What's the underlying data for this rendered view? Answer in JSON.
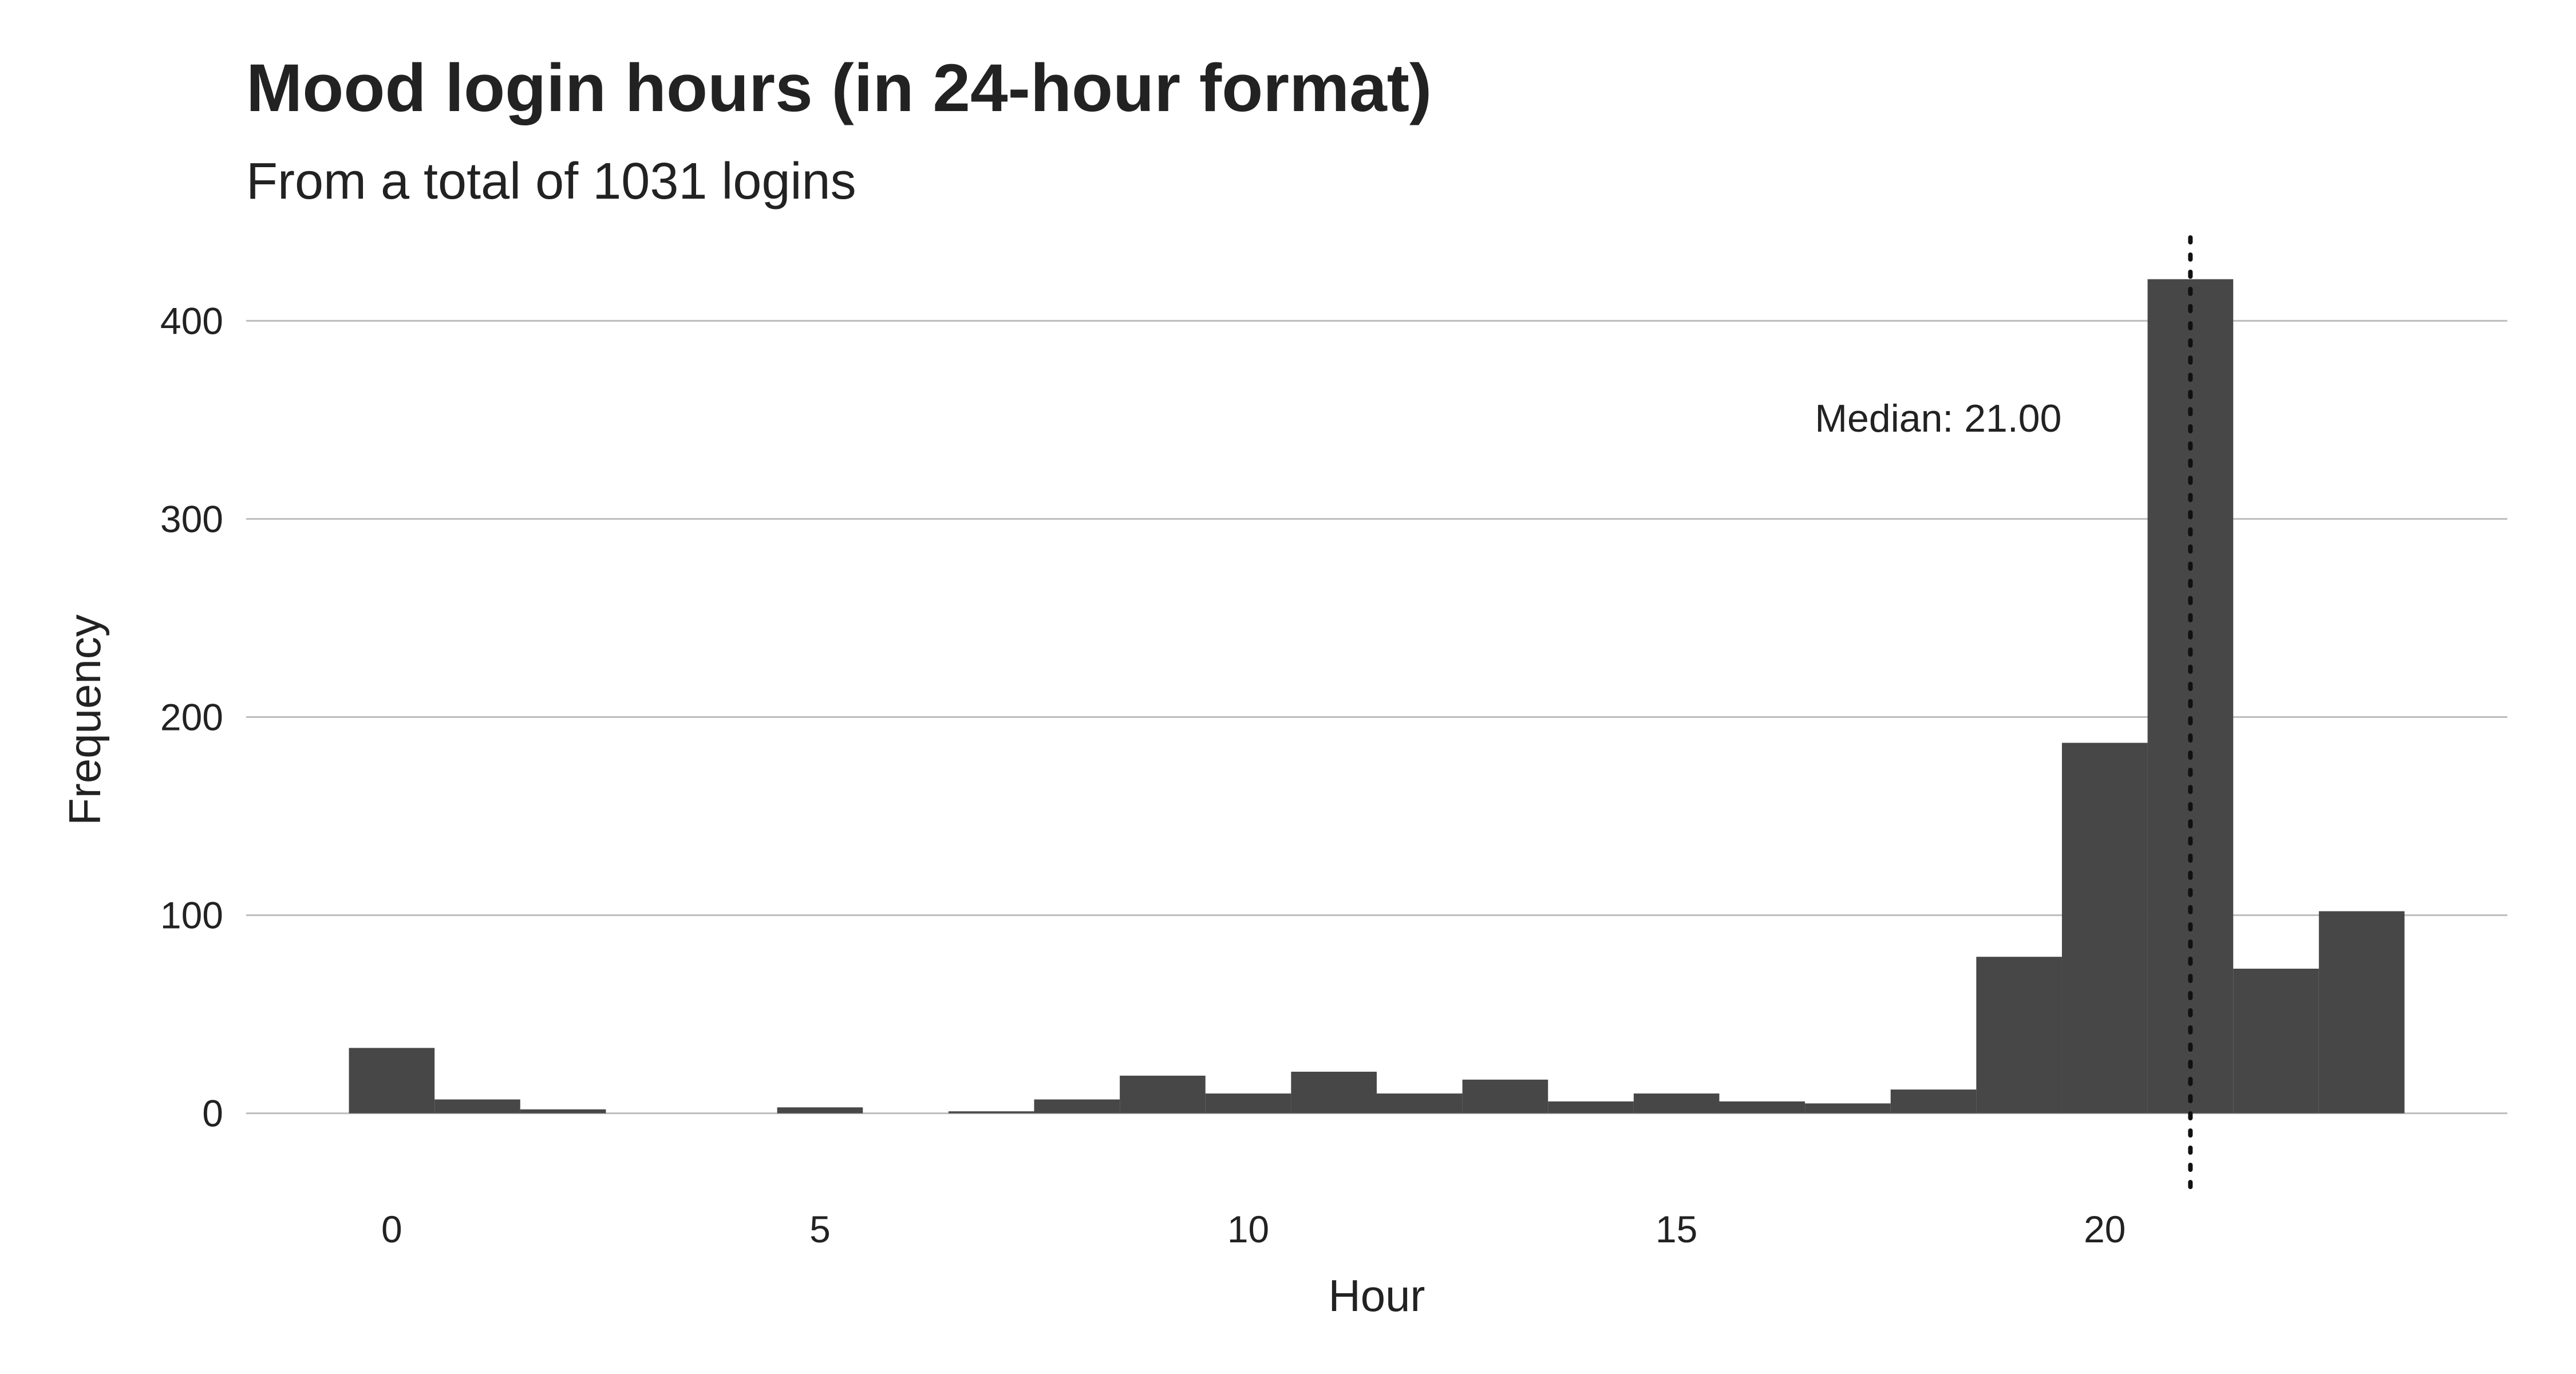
{
  "chart_data": {
    "type": "bar",
    "title": "Mood login hours (in 24-hour format)",
    "subtitle": "From a total of 1031 logins",
    "xlabel": "Hour",
    "ylabel": "Frequency",
    "x": [
      0,
      1,
      2,
      3,
      4,
      5,
      6,
      7,
      8,
      9,
      10,
      11,
      12,
      13,
      14,
      15,
      16,
      17,
      18,
      19,
      20,
      21,
      22,
      23
    ],
    "values": [
      33,
      7,
      2,
      0,
      0,
      3,
      0,
      1,
      7,
      19,
      10,
      21,
      10,
      17,
      6,
      10,
      6,
      5,
      12,
      79,
      187,
      421,
      73,
      102
    ],
    "xlim": [
      -1.7,
      24.7
    ],
    "ylim": [
      -42,
      442
    ],
    "x_ticks": [
      0,
      5,
      10,
      15,
      20
    ],
    "y_ticks": [
      0,
      100,
      200,
      300,
      400
    ],
    "grid": "horizontal",
    "bar_color": "#474747",
    "median": {
      "value": 21.0,
      "label": "Median: 21.00"
    }
  }
}
